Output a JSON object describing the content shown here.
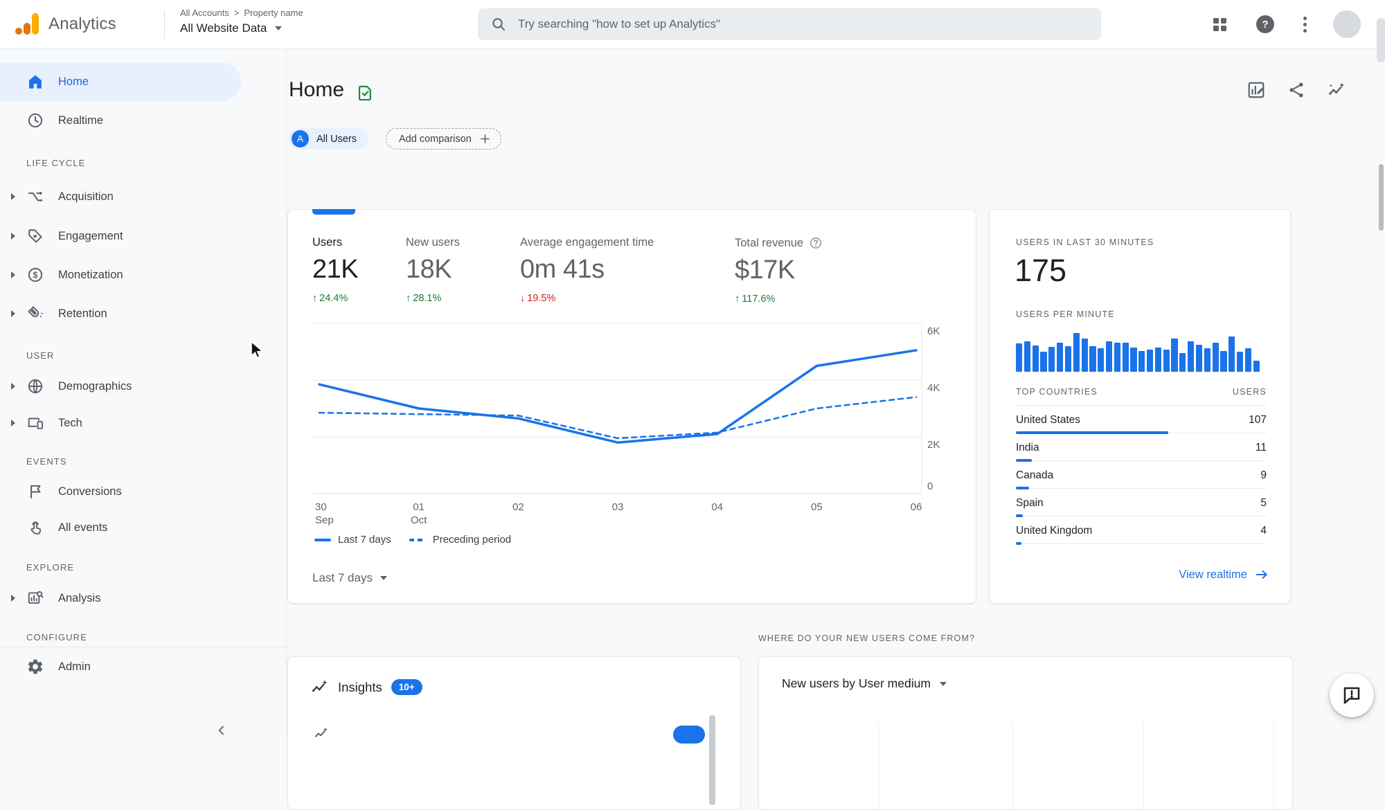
{
  "colors": {
    "accent": "#1a73e8",
    "active_bg": "#e8f0fe",
    "active_text": "#1967d2",
    "positive": "#188038",
    "negative": "#c5221f",
    "text": "#202124",
    "muted": "#5f6368"
  },
  "topbar": {
    "product_name": "Analytics",
    "breadcrumb": {
      "account": "All Accounts",
      "separator": ">",
      "property": "Property name"
    },
    "property_selector": "All Website Data",
    "search_placeholder": "Try searching \"how to set up Analytics\"",
    "help_glyph": "?"
  },
  "sidebar": {
    "items": [
      {
        "type": "item",
        "label": "Home",
        "icon": "home-icon",
        "active": true,
        "expandable": false
      },
      {
        "type": "item",
        "label": "Realtime",
        "icon": "clock-icon",
        "active": false,
        "expandable": false
      },
      {
        "type": "header",
        "label": "LIFE CYCLE"
      },
      {
        "type": "item",
        "label": "Acquisition",
        "icon": "acquisition-icon",
        "active": false,
        "expandable": true
      },
      {
        "type": "item",
        "label": "Engagement",
        "icon": "engagement-icon",
        "active": false,
        "expandable": true
      },
      {
        "type": "item",
        "label": "Monetization",
        "icon": "monetization-icon",
        "active": false,
        "expandable": true
      },
      {
        "type": "item",
        "label": "Retention",
        "icon": "retention-icon",
        "active": false,
        "expandable": true
      },
      {
        "type": "header",
        "label": "USER"
      },
      {
        "type": "item",
        "label": "Demographics",
        "icon": "demographics-icon",
        "active": false,
        "expandable": true
      },
      {
        "type": "item",
        "label": "Tech",
        "icon": "tech-icon",
        "active": false,
        "expandable": true
      },
      {
        "type": "header",
        "label": "EVENTS"
      },
      {
        "type": "item",
        "label": "Conversions",
        "icon": "conversions-icon",
        "active": false,
        "expandable": false
      },
      {
        "type": "item",
        "label": "All events",
        "icon": "all-events-icon",
        "active": false,
        "expandable": false
      },
      {
        "type": "header",
        "label": "EXPLORE"
      },
      {
        "type": "item",
        "label": "Analysis",
        "icon": "analysis-icon",
        "active": false,
        "expandable": true
      },
      {
        "type": "header",
        "label": "CONFIGURE",
        "divider_after": true
      },
      {
        "type": "item",
        "label": "Admin",
        "icon": "admin-icon",
        "active": false,
        "expandable": false
      }
    ]
  },
  "page": {
    "title": "Home",
    "comparison_chip": {
      "avatar_letter": "A",
      "label": "All Users"
    },
    "add_comparison_label": "Add comparison"
  },
  "overview": {
    "metrics": [
      {
        "label": "Users",
        "value": "21K",
        "delta": "24.4%",
        "direction": "up",
        "selected": true,
        "help": false
      },
      {
        "label": "New users",
        "value": "18K",
        "delta": "28.1%",
        "direction": "up",
        "selected": false,
        "help": false
      },
      {
        "label": "Average engagement time",
        "value": "0m 41s",
        "delta": "19.5%",
        "direction": "down",
        "selected": false,
        "help": false
      },
      {
        "label": "Total revenue",
        "value": "$17K",
        "delta": "117.6%",
        "direction": "up",
        "selected": false,
        "help": true
      }
    ],
    "range_selector": "Last 7 days"
  },
  "realtime": {
    "title": "USERS IN LAST 30 MINUTES",
    "users_count": "175",
    "per_minute_label": "USERS PER MINUTE",
    "view_realtime_label": "View realtime"
  },
  "insights_card": {
    "title": "Insights",
    "badge": "10+"
  },
  "new_users_section": {
    "heading": "WHERE DO YOUR NEW USERS COME FROM?",
    "card_title": "New users by User medium"
  },
  "chart_data": [
    {
      "id": "users_trend",
      "type": "line",
      "title": "Users trend",
      "x": [
        "30 Sep",
        "01 Oct",
        "02",
        "03",
        "04",
        "05",
        "06"
      ],
      "x_tick_lines": [
        [
          "30",
          "Sep"
        ],
        [
          "01",
          "Oct"
        ],
        [
          "02",
          ""
        ],
        [
          "03",
          ""
        ],
        [
          "04",
          ""
        ],
        [
          "05",
          ""
        ],
        [
          "06",
          ""
        ]
      ],
      "series": [
        {
          "name": "Last 7 days",
          "style": "solid",
          "values": [
            3850,
            3000,
            2650,
            1800,
            2100,
            4500,
            5050
          ]
        },
        {
          "name": "Preceding period",
          "style": "dashed",
          "values": [
            2850,
            2800,
            2750,
            1950,
            2150,
            3000,
            3400
          ]
        }
      ],
      "ylim": [
        0,
        6000
      ],
      "yticks": [
        0,
        2000,
        4000,
        6000
      ],
      "ytick_labels": [
        "0",
        "2K",
        "4K",
        "6K"
      ],
      "grid": "horizontal",
      "legend_position": "bottom-left",
      "color": "#1a73e8"
    },
    {
      "id": "users_per_minute",
      "type": "bar",
      "title": "USERS PER MINUTE",
      "values": [
        70,
        75,
        65,
        50,
        62,
        72,
        64,
        97,
        82,
        64,
        58,
        76,
        72,
        72,
        60,
        52,
        56,
        60,
        55,
        82,
        47,
        76,
        68,
        58,
        72,
        52,
        88,
        50,
        58,
        28
      ],
      "ylim": [
        0,
        100
      ],
      "color": "#1a73e8"
    },
    {
      "id": "top_countries",
      "type": "table",
      "columns": [
        "TOP COUNTRIES",
        "USERS"
      ],
      "rows": [
        {
          "country": "United States",
          "users": 107
        },
        {
          "country": "India",
          "users": 11
        },
        {
          "country": "Canada",
          "users": 9
        },
        {
          "country": "Spain",
          "users": 5
        },
        {
          "country": "United Kingdom",
          "users": 4
        }
      ],
      "bar_max": 107,
      "color": "#1a73e8"
    }
  ]
}
